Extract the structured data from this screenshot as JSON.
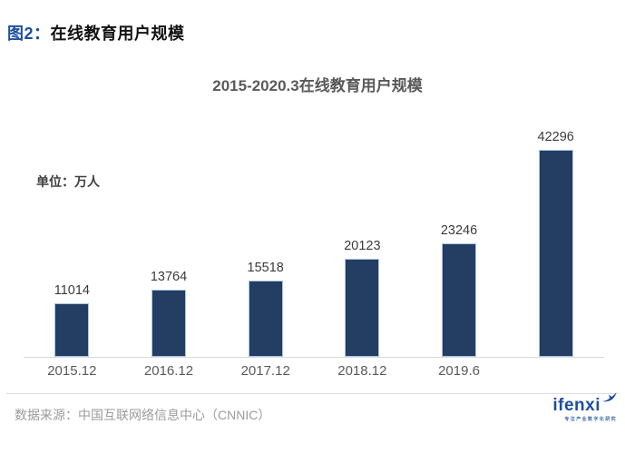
{
  "figure": {
    "prefix": "图2：",
    "title": "在线教育用户规模"
  },
  "chart_data": {
    "type": "bar",
    "title": "2015-2020.3在线教育用户规模",
    "unit_label": "单位：万人",
    "categories": [
      "2015.12",
      "2016.12",
      "2017.12",
      "2018.12",
      "2019.6",
      ""
    ],
    "values": [
      11014,
      13764,
      15518,
      20123,
      23246,
      42296
    ],
    "ylim": [
      0,
      42296
    ],
    "grid": false,
    "legend": "none",
    "data_labels": true,
    "bar_color": "#243d62",
    "bar_border_color": "#aac7e4",
    "axis_line_color": "#d9d9d9"
  },
  "footer": {
    "source": "数据来源：中国互联网络信息中心（CNNIC）"
  },
  "logo": {
    "text": "ifenxi",
    "tagline": "专注产业数字化研究",
    "color": "#1d4f9c"
  }
}
